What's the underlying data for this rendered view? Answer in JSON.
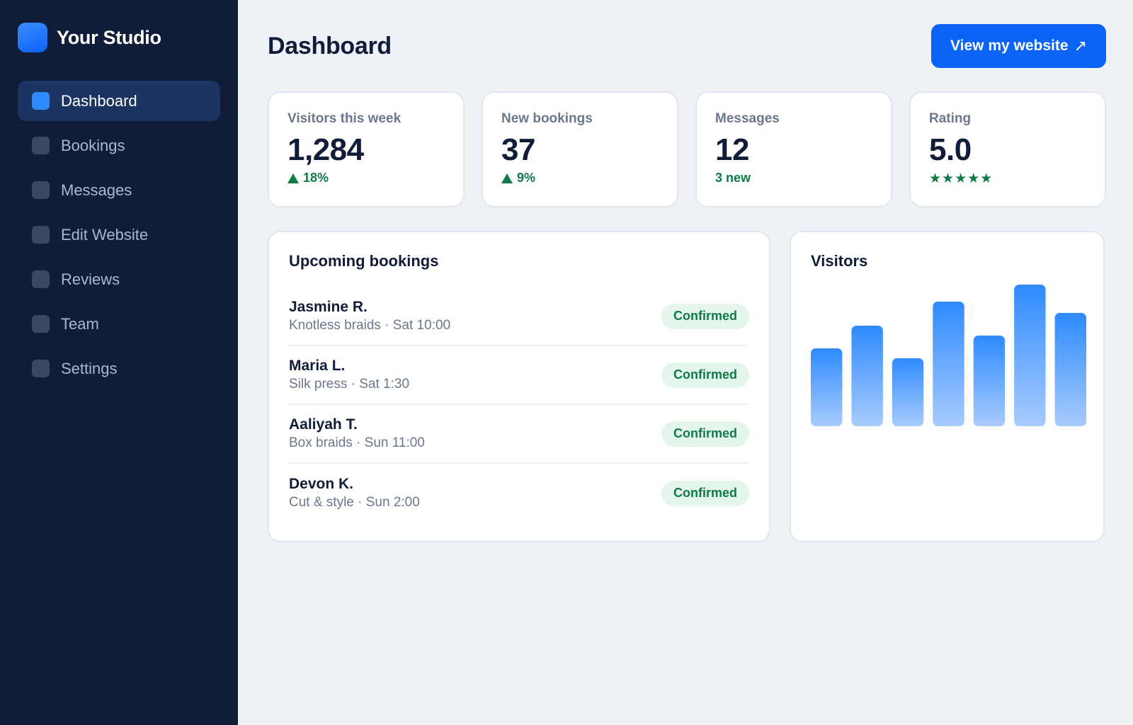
{
  "brand": {
    "name": "Your Studio"
  },
  "sidebar": {
    "items": [
      {
        "label": "Dashboard",
        "active": true
      },
      {
        "label": "Bookings"
      },
      {
        "label": "Messages"
      },
      {
        "label": "Edit Website"
      },
      {
        "label": "Reviews"
      },
      {
        "label": "Team"
      },
      {
        "label": "Settings"
      }
    ]
  },
  "header": {
    "title": "Dashboard",
    "view_site_label": "View my website",
    "view_site_icon": "↗"
  },
  "stats": [
    {
      "label": "Visitors this week",
      "value": "1,284",
      "sub": "18%",
      "trend": "up"
    },
    {
      "label": "New bookings",
      "value": "37",
      "sub": "9%",
      "trend": "up"
    },
    {
      "label": "Messages",
      "value": "12",
      "sub": "3 new"
    },
    {
      "label": "Rating",
      "value": "5.0",
      "sub": "★★★★★"
    }
  ],
  "bookings": {
    "title": "Upcoming bookings",
    "rows": [
      {
        "name": "Jasmine R.",
        "detail": "Knotless braids · Sat 10:00",
        "status": "Confirmed"
      },
      {
        "name": "Maria L.",
        "detail": "Silk press · Sat 1:30",
        "status": "Confirmed"
      },
      {
        "name": "Aaliyah T.",
        "detail": "Box braids · Sun 11:00",
        "status": "Confirmed"
      },
      {
        "name": "Devon K.",
        "detail": "Cut & style · Sun 2:00",
        "status": "Confirmed"
      }
    ]
  },
  "visitors": {
    "title": "Visitors"
  },
  "chart_data": {
    "type": "bar",
    "title": "Visitors",
    "categories": [
      "1",
      "2",
      "3",
      "4",
      "5",
      "6",
      "7"
    ],
    "values": [
      55,
      71,
      48,
      88,
      64,
      100,
      80
    ],
    "ylim": [
      0,
      100
    ],
    "colors": {
      "top": "#2e8bff",
      "bottom": "#a8cbfd"
    }
  },
  "colors": {
    "accent": "#0b63f5",
    "sidebar_bg": "#111d38",
    "success": "#0f7a46"
  }
}
